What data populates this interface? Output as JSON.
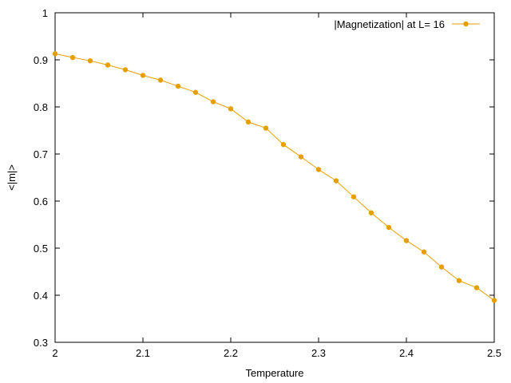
{
  "chart_data": {
    "type": "line",
    "xlabel": "Temperature",
    "ylabel": "<|m|>",
    "xlim": [
      2.0,
      2.5
    ],
    "ylim": [
      0.3,
      1.0
    ],
    "xticks": [
      "2",
      "2.1",
      "2.2",
      "2.3",
      "2.4",
      "2.5"
    ],
    "yticks": [
      "0.3",
      "0.4",
      "0.5",
      "0.6",
      "0.7",
      "0.8",
      "0.9",
      "1"
    ],
    "grid": false,
    "legend_position": "top-right",
    "series": [
      {
        "name": "|Magnetization| at L= 16",
        "color": "#e5a000",
        "x": [
          2.0,
          2.02,
          2.04,
          2.06,
          2.08,
          2.1,
          2.12,
          2.14,
          2.16,
          2.18,
          2.2,
          2.22,
          2.24,
          2.26,
          2.28,
          2.3,
          2.32,
          2.34,
          2.36,
          2.38,
          2.4,
          2.42,
          2.44,
          2.46,
          2.48,
          2.5
        ],
        "y": [
          0.913,
          0.905,
          0.898,
          0.889,
          0.879,
          0.867,
          0.857,
          0.844,
          0.831,
          0.811,
          0.796,
          0.768,
          0.755,
          0.72,
          0.694,
          0.667,
          0.643,
          0.609,
          0.575,
          0.544,
          0.516,
          0.492,
          0.46,
          0.431,
          0.416,
          0.389
        ]
      }
    ]
  }
}
